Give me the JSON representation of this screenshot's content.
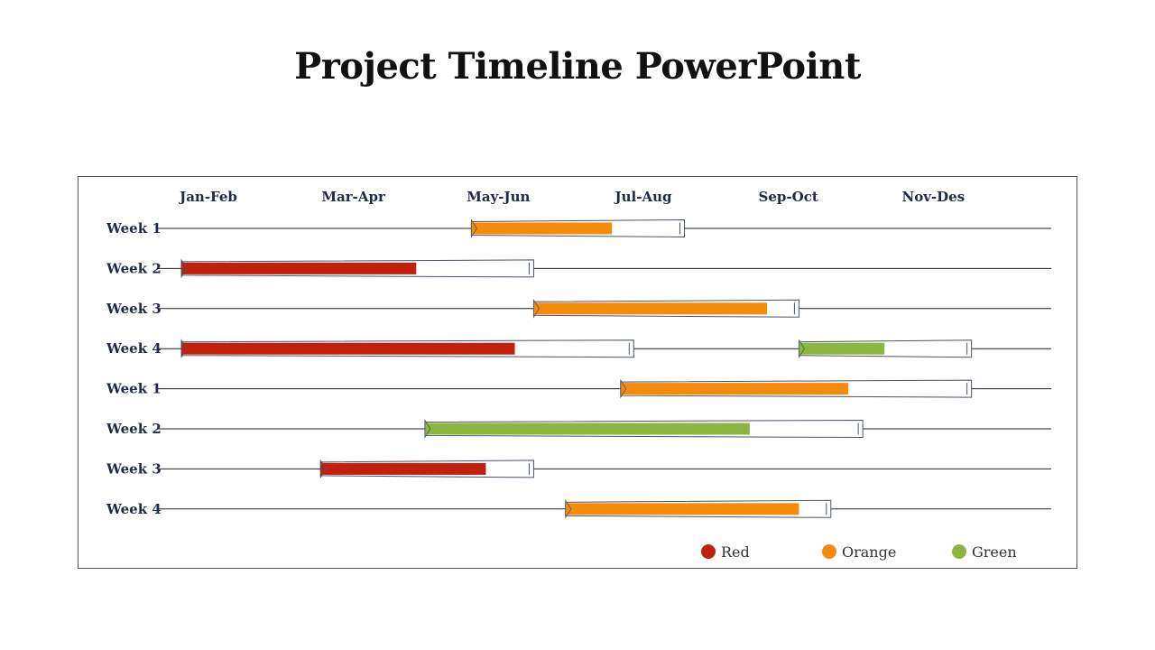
{
  "title": "Project Timeline PowerPoint",
  "colors": {
    "Red": "#c0200d",
    "Orange": "#f68b0b",
    "Green": "#8cb640",
    "outline": "#4a5568",
    "line": "#222222"
  },
  "chart_data": {
    "type": "gantt",
    "periods": [
      "Jan-Feb",
      "Mar-Apr",
      "May-Jun",
      "Jul-Aug",
      "Sep-Oct",
      "Nov-Des"
    ],
    "rows": [
      {
        "label": "Week 1",
        "bars": [
          {
            "start": 2.0,
            "progress": 2.97,
            "end": 3.47,
            "color": "Orange"
          }
        ]
      },
      {
        "label": "Week 2",
        "bars": [
          {
            "start": 0.0,
            "progress": 1.62,
            "end": 2.43,
            "color": "Red"
          }
        ]
      },
      {
        "label": "Week 3",
        "bars": [
          {
            "start": 2.43,
            "progress": 4.04,
            "end": 4.26,
            "color": "Orange"
          }
        ]
      },
      {
        "label": "Week 4",
        "bars": [
          {
            "start": 0.0,
            "progress": 2.3,
            "end": 3.12,
            "color": "Red"
          },
          {
            "start": 4.26,
            "progress": 4.85,
            "end": 5.45,
            "color": "Green"
          }
        ]
      },
      {
        "label": "Week 1",
        "bars": [
          {
            "start": 3.03,
            "progress": 4.6,
            "end": 5.45,
            "color": "Orange"
          }
        ]
      },
      {
        "label": "Week 2",
        "bars": [
          {
            "start": 1.68,
            "progress": 3.92,
            "end": 4.7,
            "color": "Green"
          }
        ]
      },
      {
        "label": "Week 3",
        "bars": [
          {
            "start": 0.96,
            "progress": 2.1,
            "end": 2.43,
            "color": "Red"
          }
        ]
      },
      {
        "label": "Week 4",
        "bars": [
          {
            "start": 2.65,
            "progress": 4.26,
            "end": 4.48,
            "color": "Orange"
          }
        ]
      }
    ],
    "legend": [
      {
        "label": "Red",
        "color": "Red"
      },
      {
        "label": "Orange",
        "color": "Orange"
      },
      {
        "label": "Green",
        "color": "Green"
      }
    ]
  }
}
